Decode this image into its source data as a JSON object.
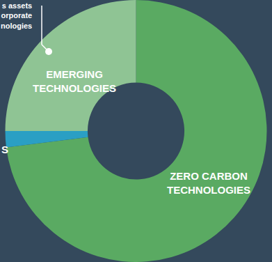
{
  "chart_data": {
    "type": "pie",
    "categories": [
      "ZERO CARBON TECHNOLOGIES",
      "S",
      "EMERGING TECHNOLOGIES"
    ],
    "values": [
      73,
      2,
      25
    ],
    "colors": [
      "#5aaa62",
      "#2a9fc4",
      "#8fc494"
    ],
    "annotation": [
      "s assets",
      "orporate",
      "nologies"
    ]
  }
}
